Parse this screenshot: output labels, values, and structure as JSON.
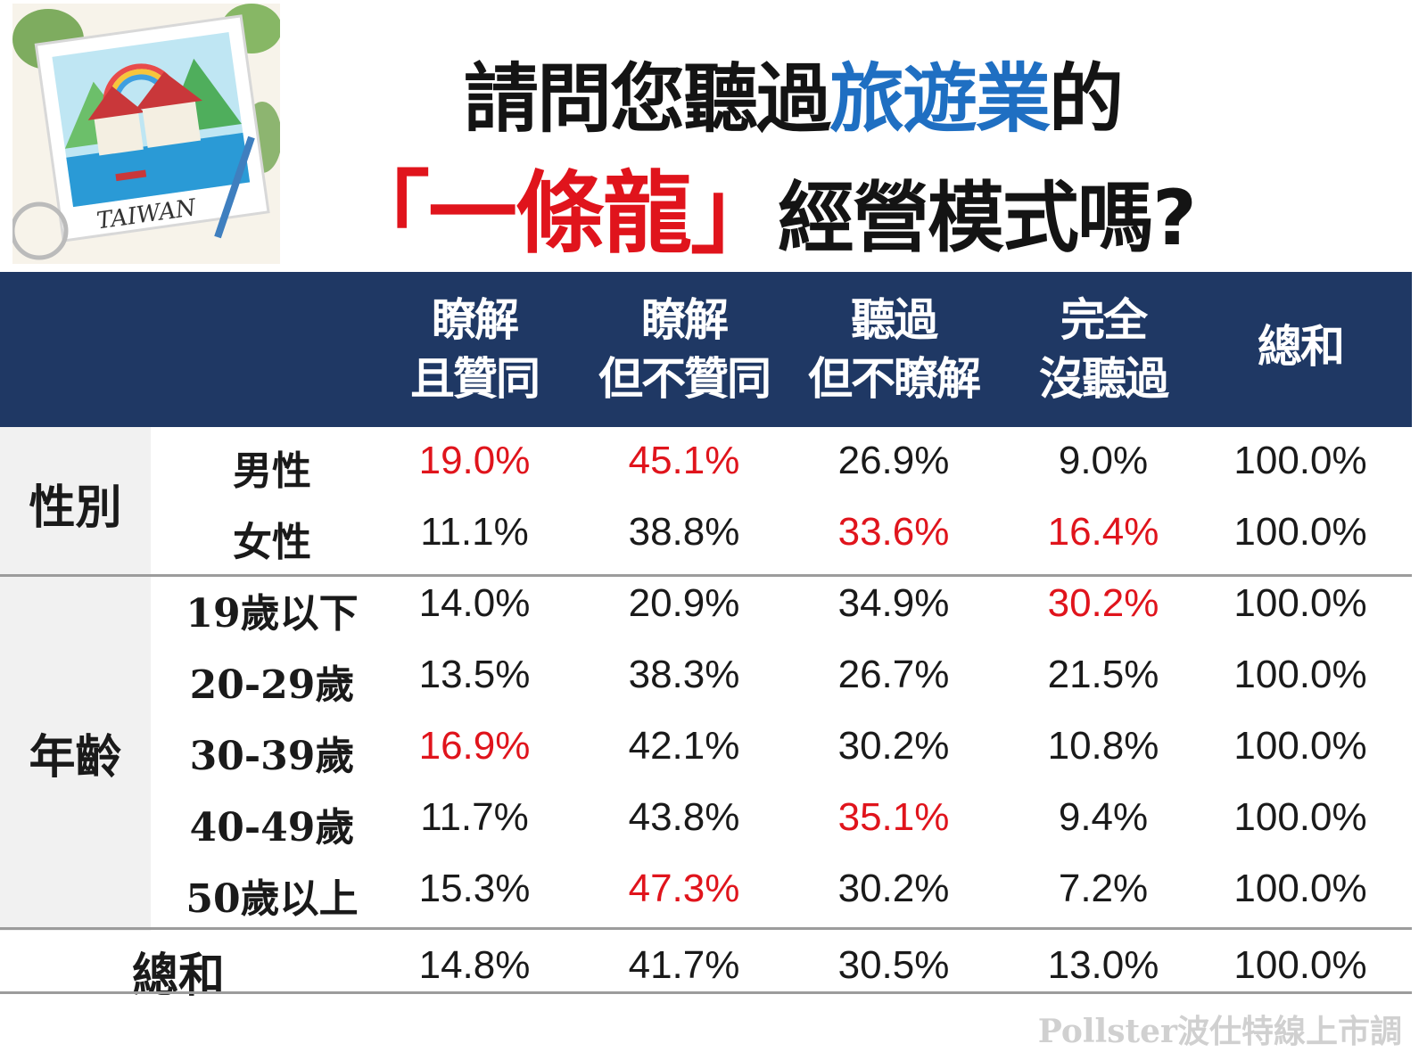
{
  "title": {
    "line1_a": "請問您聽過",
    "line1_b": "旅遊業",
    "line1_c": "的",
    "line2_a": "「一條龍」",
    "line2_b": "經營模式嗎?"
  },
  "illustration": {
    "text": "TAIWAN"
  },
  "watermark": "Pollster波仕特線上市調",
  "colors": {
    "header": "#1f3864",
    "highlight": "#e0141c",
    "title_blue": "#1f6fc2"
  },
  "chart_data": {
    "type": "table",
    "columns": [
      {
        "line1": "瞭解",
        "line2": "且贊同"
      },
      {
        "line1": "瞭解",
        "line2": "但不贊同"
      },
      {
        "line1": "聽過",
        "line2": "但不瞭解"
      },
      {
        "line1": "完全",
        "line2": "沒聽過"
      },
      {
        "line1": "總和",
        "line2": ""
      }
    ],
    "groups": [
      {
        "label": "性別",
        "rows": [
          0,
          1
        ]
      },
      {
        "label": "年齡",
        "rows": [
          2,
          3,
          4,
          5,
          6
        ]
      }
    ],
    "rows": [
      {
        "label": "男性",
        "values": [
          "19.0%",
          "45.1%",
          "26.9%",
          "9.0%",
          "100.0%"
        ],
        "highlight": [
          true,
          true,
          false,
          false,
          false
        ]
      },
      {
        "label": "女性",
        "values": [
          "11.1%",
          "38.8%",
          "33.6%",
          "16.4%",
          "100.0%"
        ],
        "highlight": [
          false,
          false,
          true,
          true,
          false
        ]
      },
      {
        "label": "19歲以下",
        "values": [
          "14.0%",
          "20.9%",
          "34.9%",
          "30.2%",
          "100.0%"
        ],
        "highlight": [
          false,
          false,
          false,
          true,
          false
        ]
      },
      {
        "label": "20-29歲",
        "values": [
          "13.5%",
          "38.3%",
          "26.7%",
          "21.5%",
          "100.0%"
        ],
        "highlight": [
          false,
          false,
          false,
          false,
          false
        ]
      },
      {
        "label": "30-39歲",
        "values": [
          "16.9%",
          "42.1%",
          "30.2%",
          "10.8%",
          "100.0%"
        ],
        "highlight": [
          true,
          false,
          false,
          false,
          false
        ]
      },
      {
        "label": "40-49歲",
        "values": [
          "11.7%",
          "43.8%",
          "35.1%",
          "9.4%",
          "100.0%"
        ],
        "highlight": [
          false,
          false,
          true,
          false,
          false
        ]
      },
      {
        "label": "50歲以上",
        "values": [
          "15.3%",
          "47.3%",
          "30.2%",
          "7.2%",
          "100.0%"
        ],
        "highlight": [
          false,
          true,
          false,
          false,
          false
        ]
      }
    ],
    "total": {
      "label": "總和",
      "values": [
        "14.8%",
        "41.7%",
        "30.5%",
        "13.0%",
        "100.0%"
      ]
    }
  }
}
